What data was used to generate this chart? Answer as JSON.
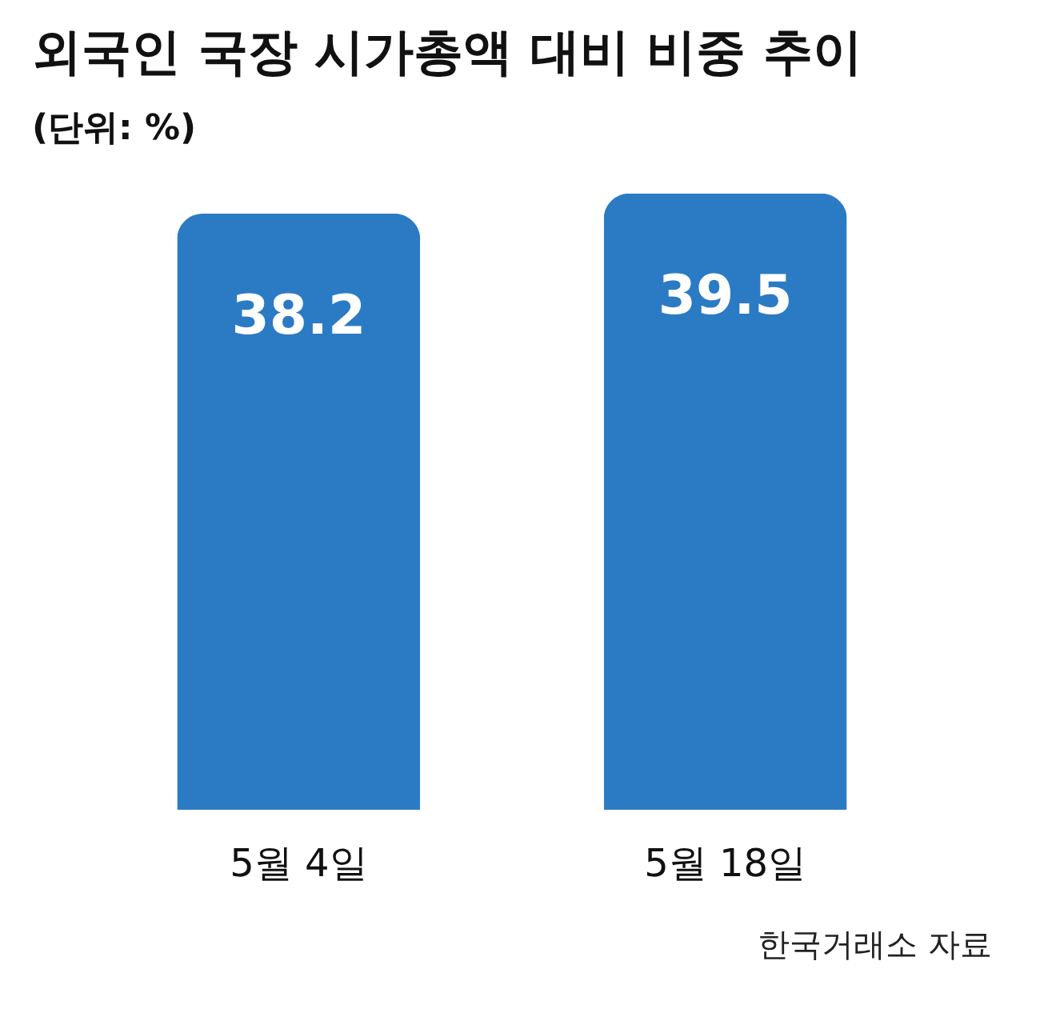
{
  "chart_data": {
    "type": "bar",
    "title": "외국인 국장 시가총액 대비 비중 추이",
    "subtitle": "(단위: %)",
    "categories": [
      "5월 4일",
      "5월 18일"
    ],
    "values": [
      38.2,
      39.5
    ],
    "color": "#2b7bc4",
    "data_labels": true,
    "annotations": [
      "한국거래소 자료"
    ]
  }
}
